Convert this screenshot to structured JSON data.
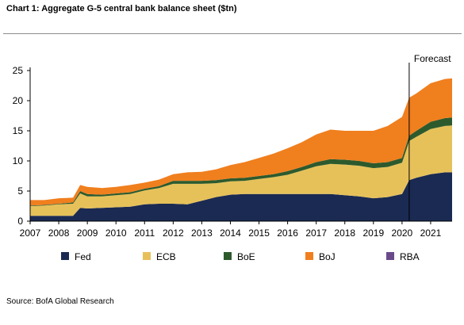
{
  "title": "Chart 1: Aggregate G-5 central bank balance sheet ($tn)",
  "source": "Source: BofA Global Research",
  "chart_data": {
    "type": "area",
    "stacked": true,
    "x": [
      2007.0,
      2007.5,
      2008.0,
      2008.5,
      2008.75,
      2009.0,
      2009.5,
      2010.0,
      2010.5,
      2011.0,
      2011.5,
      2012.0,
      2012.5,
      2013.0,
      2013.5,
      2014.0,
      2014.5,
      2015.0,
      2015.5,
      2016.0,
      2016.5,
      2017.0,
      2017.5,
      2018.0,
      2018.5,
      2019.0,
      2019.5,
      2020.0,
      2020.25,
      2020.5,
      2021.0,
      2021.5,
      2021.75
    ],
    "series": [
      {
        "name": "Fed",
        "color": "#1b2a52",
        "values": [
          0.9,
          0.9,
          0.9,
          0.9,
          2.2,
          2.1,
          2.2,
          2.3,
          2.4,
          2.8,
          2.9,
          2.9,
          2.8,
          3.4,
          4.0,
          4.4,
          4.5,
          4.5,
          4.5,
          4.5,
          4.5,
          4.5,
          4.5,
          4.3,
          4.1,
          3.8,
          4.0,
          4.5,
          6.8,
          7.2,
          7.8,
          8.1,
          8.1
        ]
      },
      {
        "name": "ECB",
        "color": "#e6c15a",
        "values": [
          1.6,
          1.7,
          1.9,
          2.0,
          2.4,
          2.0,
          1.9,
          2.0,
          2.1,
          2.3,
          2.6,
          3.3,
          3.4,
          2.8,
          2.3,
          2.2,
          2.2,
          2.5,
          2.8,
          3.2,
          3.9,
          4.6,
          5.0,
          5.1,
          5.1,
          5.0,
          5.0,
          5.2,
          6.5,
          6.8,
          7.5,
          7.7,
          7.8
        ]
      },
      {
        "name": "BoE",
        "color": "#2d5a2d",
        "values": [
          0.1,
          0.1,
          0.1,
          0.2,
          0.4,
          0.4,
          0.3,
          0.3,
          0.3,
          0.3,
          0.3,
          0.5,
          0.5,
          0.5,
          0.5,
          0.5,
          0.5,
          0.5,
          0.5,
          0.6,
          0.6,
          0.7,
          0.8,
          0.8,
          0.8,
          0.8,
          0.8,
          0.8,
          0.9,
          1.0,
          1.2,
          1.3,
          1.3
        ]
      },
      {
        "name": "BoJ",
        "color": "#f07f1e",
        "values": [
          0.9,
          0.8,
          0.9,
          0.8,
          1.0,
          1.2,
          1.1,
          1.1,
          1.2,
          1.0,
          1.1,
          1.1,
          1.4,
          1.5,
          1.8,
          2.2,
          2.6,
          3.0,
          3.4,
          3.8,
          4.1,
          4.6,
          4.9,
          4.8,
          5.0,
          5.4,
          6.0,
          6.8,
          6.3,
          6.2,
          6.4,
          6.5,
          6.5
        ]
      },
      {
        "name": "RBA",
        "color": "#6b4a8b",
        "values": [
          0.0,
          0.0,
          0.0,
          0.0,
          0.0,
          0.0,
          0.0,
          0.0,
          0.0,
          0.0,
          0.0,
          0.0,
          0.0,
          0.0,
          0.0,
          0.0,
          0.0,
          0.0,
          0.0,
          0.0,
          0.0,
          0.0,
          0.0,
          0.0,
          0.0,
          0.0,
          0.0,
          0.0,
          0.0,
          0.0,
          0.0,
          0.0,
          0.0
        ]
      }
    ],
    "xlim": [
      2007,
      2021.75
    ],
    "ylim": [
      0,
      25
    ],
    "y_ticks": [
      0,
      5,
      10,
      15,
      20,
      25
    ],
    "x_ticks": [
      2007,
      2008,
      2009,
      2010,
      2011,
      2012,
      2013,
      2014,
      2015,
      2016,
      2017,
      2018,
      2019,
      2020,
      2021
    ],
    "x_tick_labels": [
      "2007",
      "2008",
      "2009",
      "2010",
      "2011",
      "2012",
      "2013",
      "2014",
      "2015",
      "2016",
      "2017",
      "2018",
      "2019",
      "2020",
      "2021"
    ],
    "y_tick_labels": [
      "0",
      "5",
      "10",
      "15",
      "20",
      "25"
    ],
    "forecast_start": 2020.25,
    "forecast_label": "Forecast",
    "grid": false,
    "legend_position": "bottom"
  }
}
